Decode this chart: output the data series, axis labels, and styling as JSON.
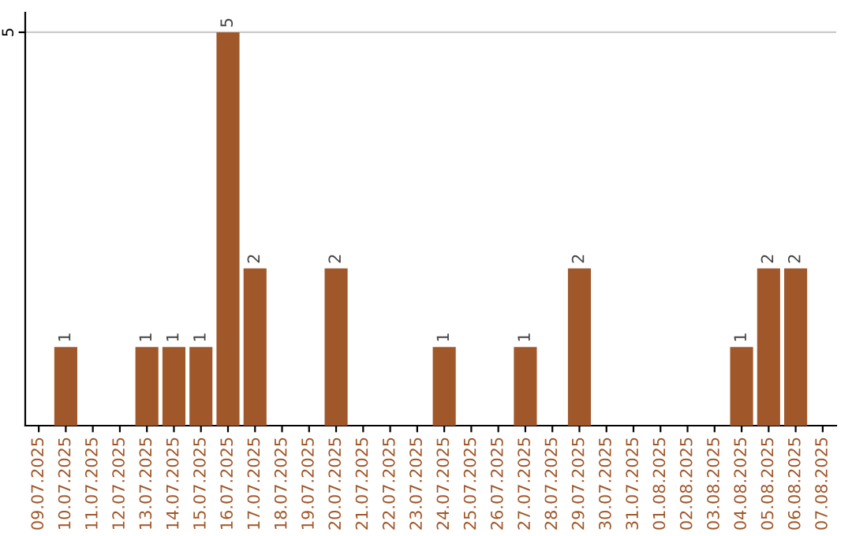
{
  "chart_data": {
    "type": "bar",
    "categories": [
      "09.07.2025",
      "10.07.2025",
      "11.07.2025",
      "12.07.2025",
      "13.07.2025",
      "14.07.2025",
      "15.07.2025",
      "16.07.2025",
      "17.07.2025",
      "18.07.2025",
      "19.07.2025",
      "20.07.2025",
      "21.07.2025",
      "22.07.2025",
      "23.07.2025",
      "24.07.2025",
      "25.07.2025",
      "26.07.2025",
      "27.07.2025",
      "28.07.2025",
      "29.07.2025",
      "30.07.2025",
      "31.07.2025",
      "01.08.2025",
      "02.08.2025",
      "03.08.2025",
      "04.08.2025",
      "05.08.2025",
      "06.08.2025",
      "07.08.2025"
    ],
    "values": [
      0,
      1,
      0,
      0,
      1,
      1,
      1,
      5,
      2,
      0,
      0,
      2,
      0,
      0,
      0,
      1,
      0,
      0,
      1,
      0,
      2,
      0,
      0,
      0,
      0,
      0,
      1,
      2,
      2,
      0
    ],
    "value_labels": [
      null,
      "1",
      null,
      null,
      "1",
      "1",
      "1",
      "5",
      "2",
      null,
      null,
      "2",
      null,
      null,
      null,
      "1",
      null,
      null,
      "1",
      null,
      "2",
      null,
      null,
      null,
      null,
      null,
      "1",
      "2",
      "2",
      null
    ],
    "color": "#a0572a",
    "ylim": [
      0,
      5.25
    ],
    "yticks": [
      5
    ],
    "grid": "y"
  }
}
